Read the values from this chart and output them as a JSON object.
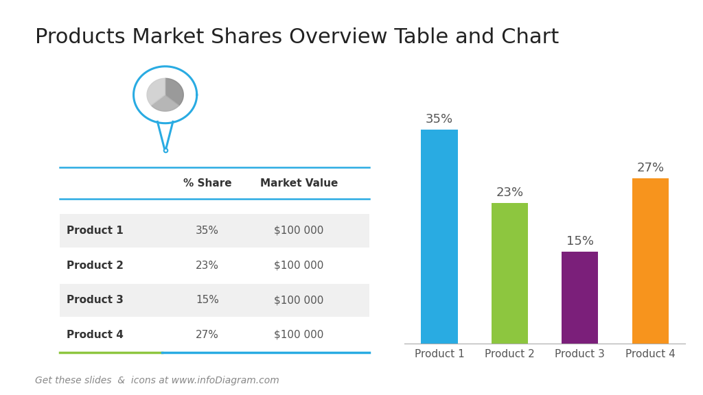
{
  "title": "Products Market Shares Overview Table and Chart",
  "title_fontsize": 22,
  "title_color": "#222222",
  "background_color": "#ffffff",
  "products": [
    "Product 1",
    "Product 2",
    "Product 3",
    "Product 4"
  ],
  "shares": [
    35,
    23,
    15,
    27
  ],
  "market_values": [
    "$100 000",
    "$100 000",
    "$100 000",
    "$100 000"
  ],
  "bar_colors": [
    "#29ABE2",
    "#8DC63F",
    "#7B1F7A",
    "#F7941D"
  ],
  "table_header": [
    "% Share",
    "Market Value"
  ],
  "bar_label_color": "#555555",
  "bar_label_fontsize": 13,
  "xlabel_fontsize": 11,
  "icon_color": "#29ABE2",
  "table_border_top_color": "#29ABE2",
  "table_border_bottom_color_left": "#8DC63F",
  "table_border_bottom_color_right": "#29ABE2",
  "footer_text": "Get these slides  &  icons at www.infoDiagram.com",
  "footer_color": "#888888",
  "footer_fontsize": 10,
  "accent_bar_color": "#29ABE2",
  "row_bg_colors": [
    "#f0f0f0",
    "#ffffff",
    "#f0f0f0",
    "#ffffff"
  ]
}
